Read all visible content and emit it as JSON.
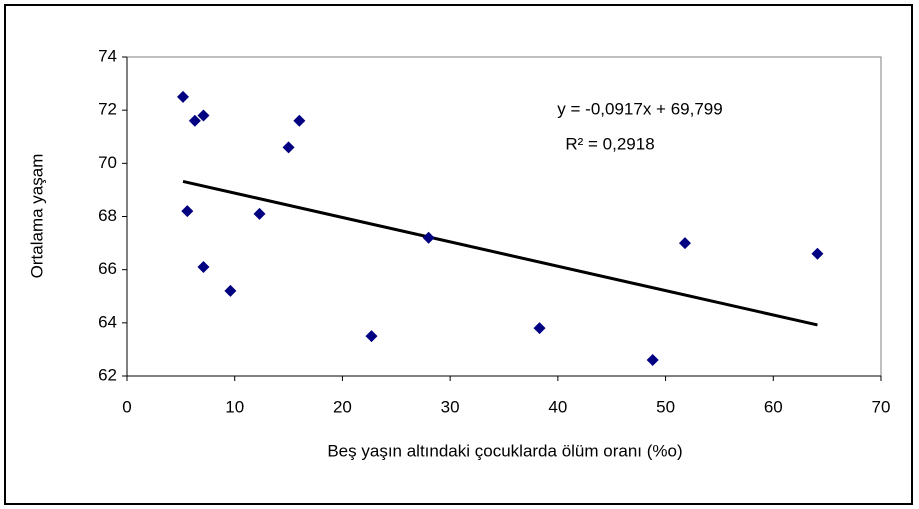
{
  "chart_data": {
    "type": "scatter",
    "annotations": [
      "y = -0,0917x + 69,799",
      "R² = 0,2918"
    ],
    "x_label": "Beş yaşın altındaki çocuklarda ölüm oranı (%o)",
    "y_label": "Ortalama yaşam",
    "series": [
      {
        "color": "#000080",
        "x": [
          5.2,
          5.6,
          6.3,
          7.1,
          7.1,
          9.6,
          12.3,
          15.0,
          16.0,
          22.7,
          28.0,
          38.3,
          48.8,
          51.8,
          64.1
        ],
        "values": [
          72.5,
          68.2,
          71.6,
          71.8,
          66.1,
          65.2,
          68.1,
          70.6,
          71.6,
          63.5,
          67.2,
          63.8,
          62.6,
          67.0,
          66.6
        ]
      }
    ],
    "trendline": {
      "color": "#000000",
      "x": [
        5.2,
        64.1
      ],
      "values": [
        69.32,
        63.92
      ]
    },
    "xlim": [
      0,
      70
    ],
    "xticks": [
      0,
      10,
      20,
      30,
      40,
      50,
      60,
      70
    ],
    "ylim": [
      62,
      74
    ],
    "yticks": [
      62,
      64,
      66,
      68,
      70,
      72,
      74
    ]
  }
}
